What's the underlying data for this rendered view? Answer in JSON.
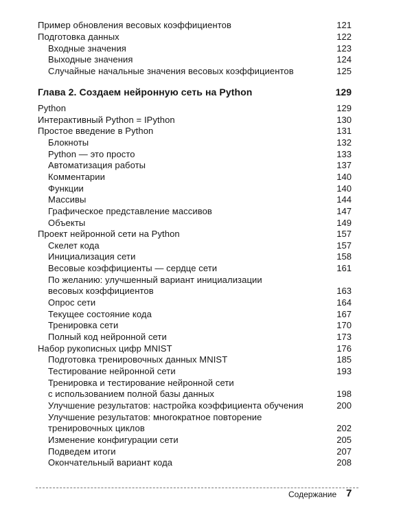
{
  "entries_before": [
    {
      "title": "Пример обновления весовых коэффициентов",
      "page": 121
    },
    {
      "title": "Подготовка данных",
      "page": 122,
      "children": [
        {
          "title": "Входные значения",
          "page": 123
        },
        {
          "title": "Выходные значения",
          "page": 124
        },
        {
          "title": "Случайные начальные значения весовых коэффициентов",
          "page": 125
        }
      ]
    }
  ],
  "chapter": {
    "title": "Глава 2. Создаем нейронную сеть на Python",
    "page": 129
  },
  "entries": [
    {
      "title": "Python",
      "page": 129
    },
    {
      "title": "Интерактивный Python = IPython",
      "page": 130
    },
    {
      "title": "Простое введение в Python",
      "page": 131,
      "children": [
        {
          "title": "Блокноты",
          "page": 132
        },
        {
          "title": "Python — это просто",
          "page": 133
        },
        {
          "title": "Автоматизация работы",
          "page": 137
        },
        {
          "title": "Комментарии",
          "page": 140
        },
        {
          "title": "Функции",
          "page": 140
        },
        {
          "title": "Массивы",
          "page": 144
        },
        {
          "title": "Графическое представление массивов",
          "page": 147
        },
        {
          "title": "Объекты",
          "page": 149
        }
      ]
    },
    {
      "title": "Проект нейронной сети на Python",
      "page": 157,
      "children": [
        {
          "title": "Скелет кода",
          "page": 157
        },
        {
          "title": "Инициализация сети",
          "page": 158
        },
        {
          "title": "Весовые коэффициенты — сердце сети",
          "page": 161
        },
        {
          "lines": [
            "По желанию: улучшенный вариант инициализации",
            "весовых коэффициентов"
          ],
          "page": 163
        },
        {
          "title": "Опрос сети",
          "page": 164
        },
        {
          "title": "Текущее состояние кода",
          "page": 167
        },
        {
          "title": "Тренировка сети",
          "page": 170
        },
        {
          "title": "Полный код нейронной сети",
          "page": 173
        }
      ]
    },
    {
      "title": "Набор рукописных цифр MNIST",
      "page": 176,
      "children": [
        {
          "title": "Подготовка тренировочных данных MNIST",
          "page": 185
        },
        {
          "title": "Тестирование нейронной сети",
          "page": 193
        },
        {
          "lines": [
            "Тренировка и тестирование нейронной сети",
            "с использованием полной базы данных"
          ],
          "page": 198
        },
        {
          "title": "Улучшение результатов: настройка коэффициента обучения",
          "page": 200
        },
        {
          "lines": [
            "Улучшение результатов: многократное повторение",
            "тренировочных циклов"
          ],
          "page": 202
        },
        {
          "title": "Изменение конфигурации сети",
          "page": 205
        },
        {
          "title": "Подведем итоги",
          "page": 207
        },
        {
          "title": "Окончательный вариант кода",
          "page": 208
        }
      ]
    }
  ],
  "footer": {
    "section": "Содержание",
    "page": 7
  }
}
